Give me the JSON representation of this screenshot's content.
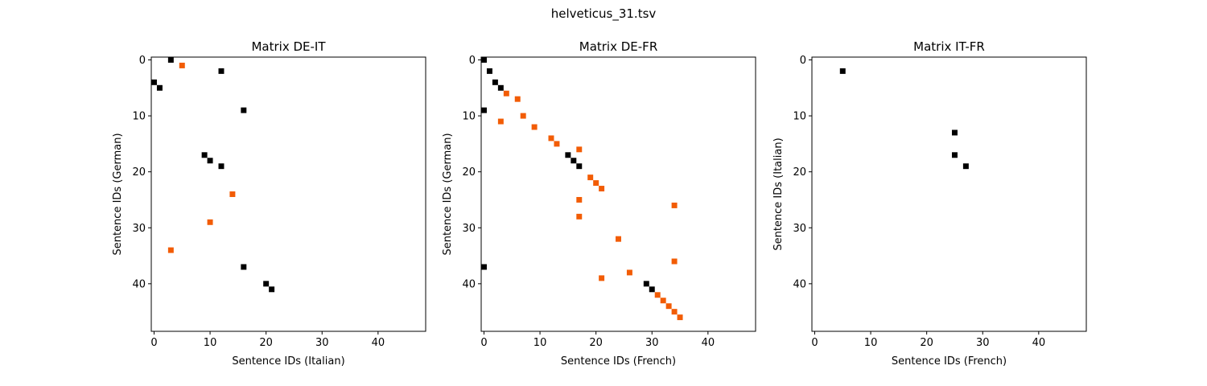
{
  "figure": {
    "title": "helveticus_31.tsv"
  },
  "chart_data": [
    {
      "type": "heatmap",
      "title": "Matrix DE-IT",
      "xlabel": "Sentence IDs (Italian)",
      "ylabel": "Sentence IDs (German)",
      "xlim": [
        -0.5,
        48.5
      ],
      "ylim": [
        48.5,
        -0.5
      ],
      "xticks": [
        0,
        10,
        20,
        30,
        40
      ],
      "yticks": [
        0,
        10,
        20,
        30,
        40
      ],
      "colors": {
        "black": "#000000",
        "orange": "#f25c05"
      },
      "points": [
        {
          "x": 3,
          "y": 0,
          "c": "black"
        },
        {
          "x": 5,
          "y": 1,
          "c": "orange"
        },
        {
          "x": 12,
          "y": 2,
          "c": "black"
        },
        {
          "x": 0,
          "y": 4,
          "c": "black"
        },
        {
          "x": 1,
          "y": 5,
          "c": "black"
        },
        {
          "x": 16,
          "y": 9,
          "c": "black"
        },
        {
          "x": 9,
          "y": 17,
          "c": "black"
        },
        {
          "x": 10,
          "y": 18,
          "c": "black"
        },
        {
          "x": 12,
          "y": 19,
          "c": "black"
        },
        {
          "x": 14,
          "y": 24,
          "c": "orange"
        },
        {
          "x": 10,
          "y": 29,
          "c": "orange"
        },
        {
          "x": 3,
          "y": 34,
          "c": "orange"
        },
        {
          "x": 16,
          "y": 37,
          "c": "black"
        },
        {
          "x": 20,
          "y": 40,
          "c": "black"
        },
        {
          "x": 21,
          "y": 41,
          "c": "black"
        }
      ]
    },
    {
      "type": "heatmap",
      "title": "Matrix DE-FR",
      "xlabel": "Sentence IDs (French)",
      "ylabel": "Sentence IDs (German)",
      "xlim": [
        -0.5,
        48.5
      ],
      "ylim": [
        48.5,
        -0.5
      ],
      "xticks": [
        0,
        10,
        20,
        30,
        40
      ],
      "yticks": [
        0,
        10,
        20,
        30,
        40
      ],
      "colors": {
        "black": "#000000",
        "orange": "#f25c05"
      },
      "points": [
        {
          "x": 0,
          "y": 0,
          "c": "black"
        },
        {
          "x": 1,
          "y": 2,
          "c": "black"
        },
        {
          "x": 2,
          "y": 4,
          "c": "black"
        },
        {
          "x": 3,
          "y": 5,
          "c": "black"
        },
        {
          "x": 4,
          "y": 6,
          "c": "orange"
        },
        {
          "x": 6,
          "y": 7,
          "c": "orange"
        },
        {
          "x": 0,
          "y": 9,
          "c": "black"
        },
        {
          "x": 7,
          "y": 10,
          "c": "orange"
        },
        {
          "x": 3,
          "y": 11,
          "c": "orange"
        },
        {
          "x": 9,
          "y": 12,
          "c": "orange"
        },
        {
          "x": 12,
          "y": 14,
          "c": "orange"
        },
        {
          "x": 13,
          "y": 15,
          "c": "orange"
        },
        {
          "x": 17,
          "y": 16,
          "c": "orange"
        },
        {
          "x": 15,
          "y": 17,
          "c": "black"
        },
        {
          "x": 16,
          "y": 18,
          "c": "black"
        },
        {
          "x": 17,
          "y": 19,
          "c": "black"
        },
        {
          "x": 19,
          "y": 21,
          "c": "orange"
        },
        {
          "x": 20,
          "y": 22,
          "c": "orange"
        },
        {
          "x": 21,
          "y": 23,
          "c": "orange"
        },
        {
          "x": 17,
          "y": 25,
          "c": "orange"
        },
        {
          "x": 34,
          "y": 26,
          "c": "orange"
        },
        {
          "x": 17,
          "y": 28,
          "c": "orange"
        },
        {
          "x": 24,
          "y": 32,
          "c": "orange"
        },
        {
          "x": 34,
          "y": 36,
          "c": "orange"
        },
        {
          "x": 0,
          "y": 37,
          "c": "black"
        },
        {
          "x": 26,
          "y": 38,
          "c": "orange"
        },
        {
          "x": 21,
          "y": 39,
          "c": "orange"
        },
        {
          "x": 29,
          "y": 40,
          "c": "black"
        },
        {
          "x": 30,
          "y": 41,
          "c": "black"
        },
        {
          "x": 31,
          "y": 42,
          "c": "orange"
        },
        {
          "x": 32,
          "y": 43,
          "c": "orange"
        },
        {
          "x": 33,
          "y": 44,
          "c": "orange"
        },
        {
          "x": 34,
          "y": 45,
          "c": "orange"
        },
        {
          "x": 35,
          "y": 46,
          "c": "orange"
        }
      ]
    },
    {
      "type": "heatmap",
      "title": "Matrix IT-FR",
      "xlabel": "Sentence IDs (French)",
      "ylabel": "Sentence IDs (Italian)",
      "xlim": [
        -0.5,
        48.5
      ],
      "ylim": [
        48.5,
        -0.5
      ],
      "xticks": [
        0,
        10,
        20,
        30,
        40
      ],
      "yticks": [
        0,
        10,
        20,
        30,
        40
      ],
      "colors": {
        "black": "#000000",
        "orange": "#f25c05"
      },
      "points": [
        {
          "x": 5,
          "y": 2,
          "c": "black"
        },
        {
          "x": 25,
          "y": 13,
          "c": "black"
        },
        {
          "x": 25,
          "y": 17,
          "c": "black"
        },
        {
          "x": 27,
          "y": 19,
          "c": "black"
        }
      ]
    }
  ]
}
